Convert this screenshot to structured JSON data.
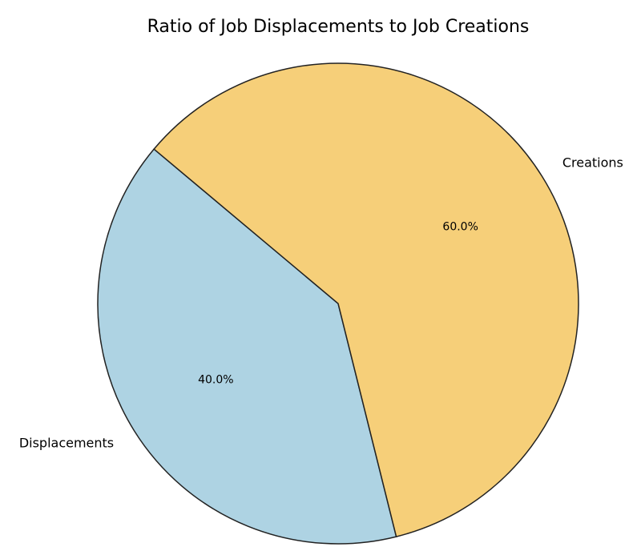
{
  "chart_data": {
    "type": "pie",
    "title": "Ratio of Job Displacements to Job Creations",
    "categories": [
      "Displacements",
      "Creations"
    ],
    "values": [
      40,
      60
    ],
    "value_labels": [
      "40.0%",
      "60.0%"
    ],
    "colors": [
      "#aed3e3",
      "#f6cf79"
    ]
  }
}
